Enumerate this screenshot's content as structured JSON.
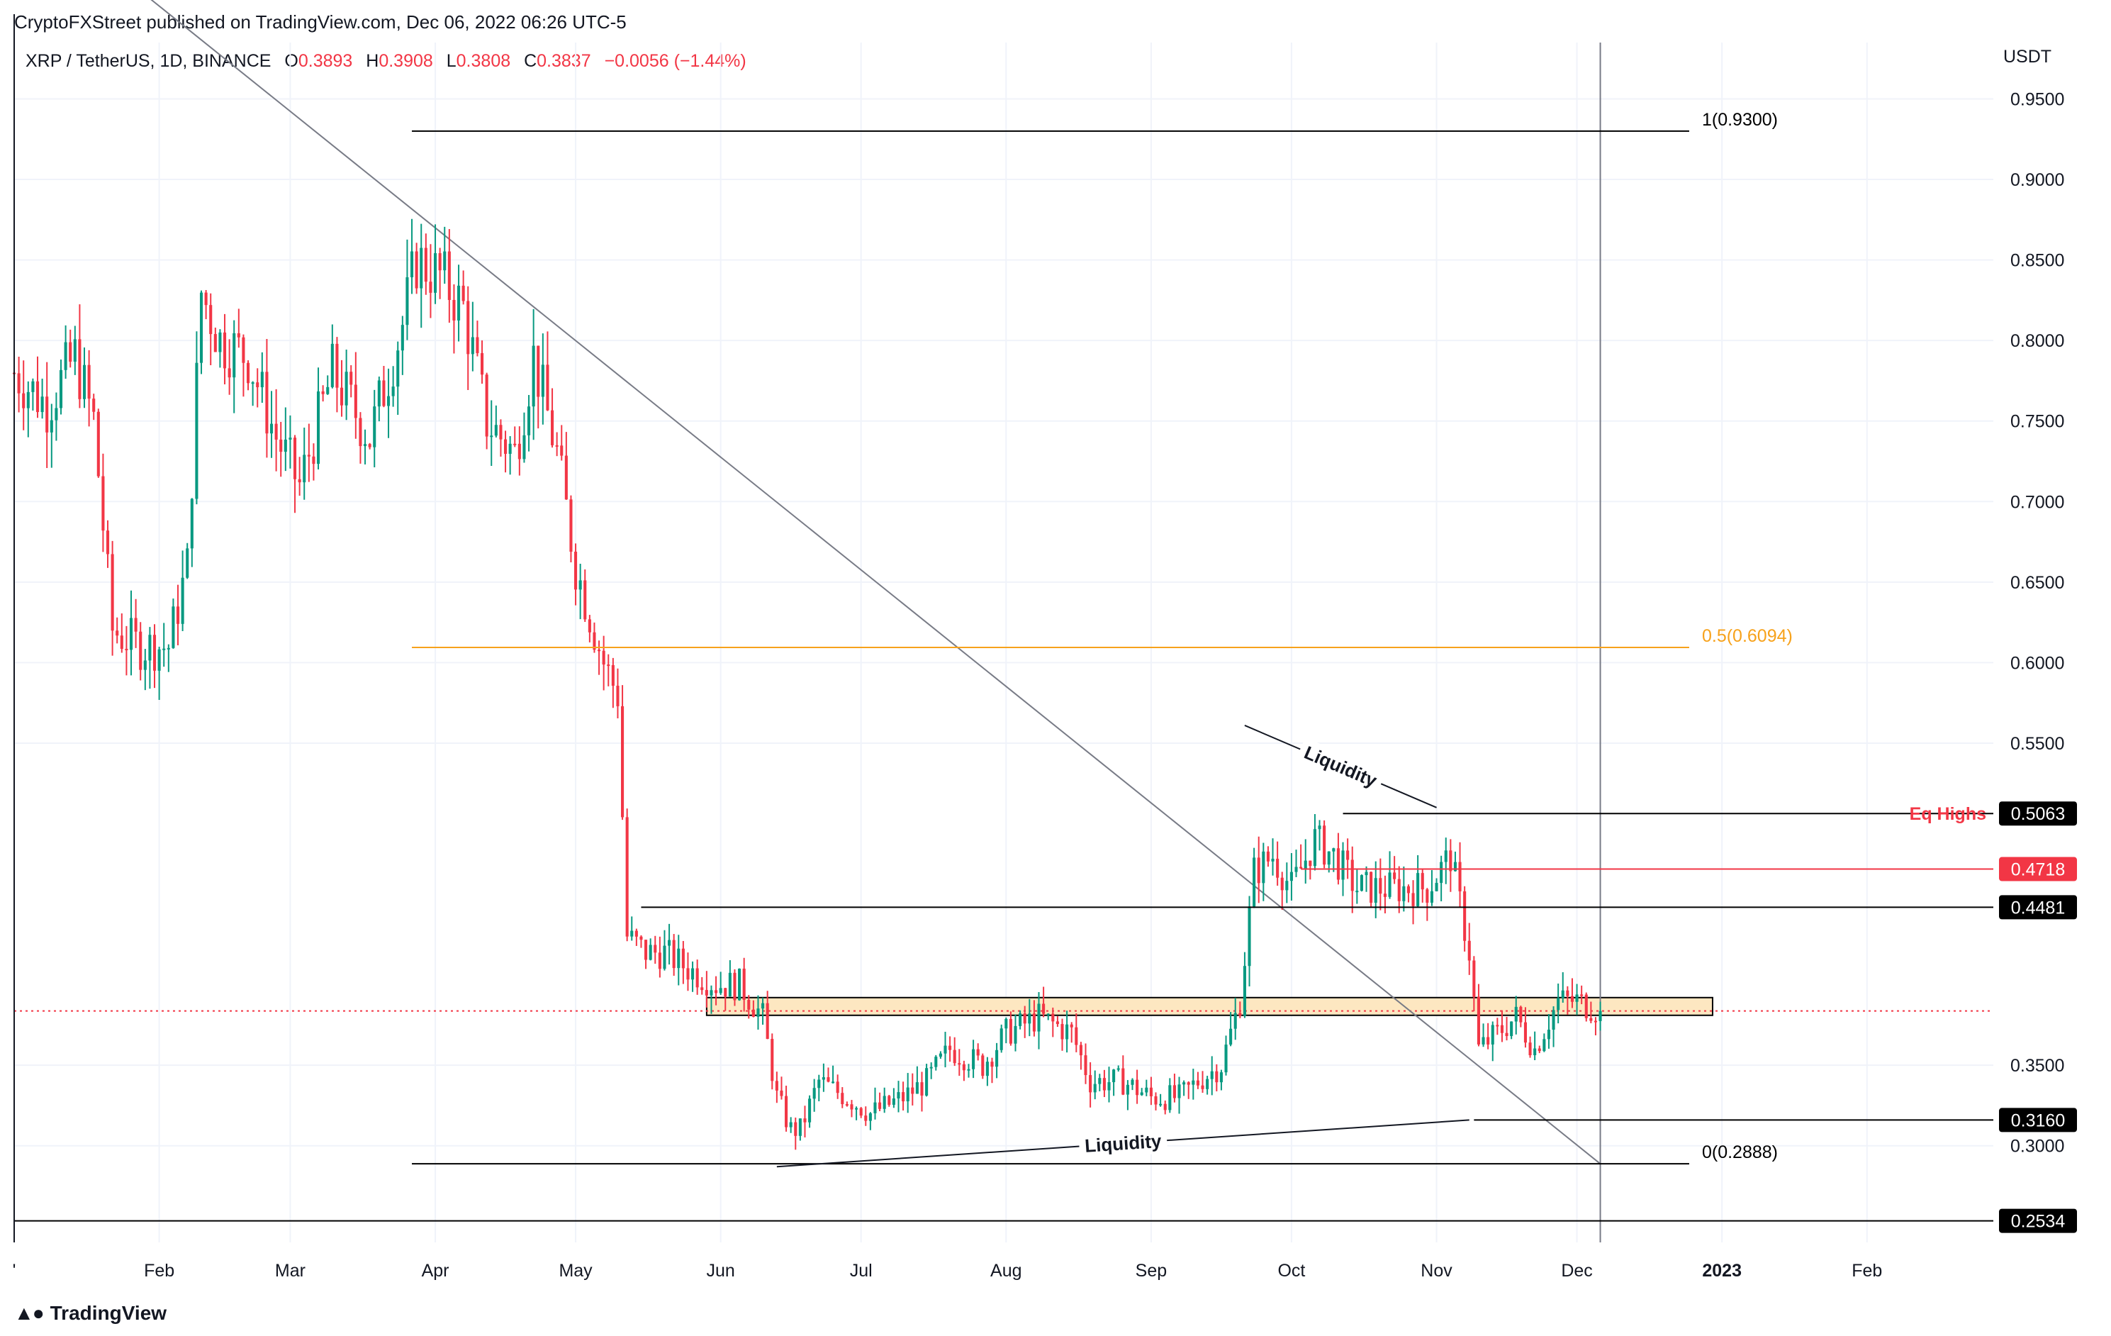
{
  "header": {
    "publisher": "CryptoFXStreet published on TradingView.com, Dec 06, 2022 06:26 UTC-5",
    "symbol": "XRP / TetherUS, 1D, BINANCE",
    "open_label": "O",
    "open": "0.3893",
    "high_label": "H",
    "high": "0.3908",
    "low_label": "L",
    "low": "0.3808",
    "close_label": "C",
    "close": "0.3837",
    "change": "−0.0056 (−1.44%)"
  },
  "footer": {
    "brand": "TradingView",
    "logo_icon": "tradingview-logo-icon"
  },
  "colors": {
    "up": "#089981",
    "down": "#f23645",
    "fib_mid": "#f7a21b",
    "zone_fill": "#fde7c1",
    "zone_stroke": "#000000",
    "price_line": "#f23645",
    "grid": "#f0f3fa"
  },
  "chart_data": {
    "type": "candlestick",
    "ylabel": "USDT",
    "ylim": [
      0.24,
      0.985
    ],
    "xlim": [
      "2022-01-01",
      "2023-02-28"
    ],
    "yticks": [
      "0.9500",
      "0.9000",
      "0.8500",
      "0.8000",
      "0.7500",
      "0.7000",
      "0.6500",
      "0.6000",
      "0.5500",
      "0.3500",
      "0.3000"
    ],
    "xticks": [
      {
        "date": "2022-01-01",
        "label": "'"
      },
      {
        "date": "2022-02-01",
        "label": "Feb"
      },
      {
        "date": "2022-03-01",
        "label": "Mar"
      },
      {
        "date": "2022-04-01",
        "label": "Apr"
      },
      {
        "date": "2022-05-01",
        "label": "May"
      },
      {
        "date": "2022-06-01",
        "label": "Jun"
      },
      {
        "date": "2022-07-01",
        "label": "Jul"
      },
      {
        "date": "2022-08-01",
        "label": "Aug"
      },
      {
        "date": "2022-09-01",
        "label": "Sep"
      },
      {
        "date": "2022-10-01",
        "label": "Oct"
      },
      {
        "date": "2022-11-01",
        "label": "Nov"
      },
      {
        "date": "2022-12-01",
        "label": "Dec"
      },
      {
        "date": "2023-01-01",
        "label": "2023",
        "bold": true
      },
      {
        "date": "2023-02-01",
        "label": "Feb"
      }
    ],
    "price_path": [
      [
        "2022-01-01",
        0.78
      ],
      [
        "2022-01-08",
        0.76
      ],
      [
        "2022-01-14",
        0.79
      ],
      [
        "2022-01-18",
        0.75
      ],
      [
        "2022-01-22",
        0.62
      ],
      [
        "2022-01-28",
        0.61
      ],
      [
        "2022-02-03",
        0.61
      ],
      [
        "2022-02-07",
        0.66
      ],
      [
        "2022-02-10",
        0.83
      ],
      [
        "2022-02-14",
        0.8
      ],
      [
        "2022-02-20",
        0.79
      ],
      [
        "2022-02-26",
        0.74
      ],
      [
        "2022-03-03",
        0.71
      ],
      [
        "2022-03-10",
        0.78
      ],
      [
        "2022-03-18",
        0.74
      ],
      [
        "2022-03-25",
        0.81
      ],
      [
        "2022-03-28",
        0.85
      ],
      [
        "2022-04-02",
        0.84
      ],
      [
        "2022-04-07",
        0.82
      ],
      [
        "2022-04-12",
        0.75
      ],
      [
        "2022-04-18",
        0.73
      ],
      [
        "2022-04-22",
        0.79
      ],
      [
        "2022-04-27",
        0.73
      ],
      [
        "2022-05-01",
        0.66
      ],
      [
        "2022-05-07",
        0.6
      ],
      [
        "2022-05-10",
        0.58
      ],
      [
        "2022-05-12",
        0.43
      ],
      [
        "2022-05-16",
        0.42
      ],
      [
        "2022-05-20",
        0.42
      ],
      [
        "2022-05-25",
        0.41
      ],
      [
        "2022-05-31",
        0.4
      ],
      [
        "2022-06-05",
        0.4
      ],
      [
        "2022-06-10",
        0.38
      ],
      [
        "2022-06-13",
        0.33
      ],
      [
        "2022-06-16",
        0.31
      ],
      [
        "2022-06-18",
        0.31
      ],
      [
        "2022-06-22",
        0.34
      ],
      [
        "2022-06-28",
        0.33
      ],
      [
        "2022-07-03",
        0.32
      ],
      [
        "2022-07-10",
        0.33
      ],
      [
        "2022-07-15",
        0.34
      ],
      [
        "2022-07-20",
        0.36
      ],
      [
        "2022-07-27",
        0.35
      ],
      [
        "2022-08-01",
        0.37
      ],
      [
        "2022-08-08",
        0.38
      ],
      [
        "2022-08-15",
        0.37
      ],
      [
        "2022-08-19",
        0.34
      ],
      [
        "2022-08-26",
        0.34
      ],
      [
        "2022-09-01",
        0.33
      ],
      [
        "2022-09-07",
        0.33
      ],
      [
        "2022-09-11",
        0.34
      ],
      [
        "2022-09-16",
        0.35
      ],
      [
        "2022-09-20",
        0.39
      ],
      [
        "2022-09-23",
        0.47
      ],
      [
        "2022-09-27",
        0.48
      ],
      [
        "2022-10-01",
        0.46
      ],
      [
        "2022-10-06",
        0.49
      ],
      [
        "2022-10-10",
        0.48
      ],
      [
        "2022-10-15",
        0.46
      ],
      [
        "2022-10-20",
        0.46
      ],
      [
        "2022-10-25",
        0.46
      ],
      [
        "2022-10-30",
        0.46
      ],
      [
        "2022-11-04",
        0.48
      ],
      [
        "2022-11-08",
        0.42
      ],
      [
        "2022-11-10",
        0.36
      ],
      [
        "2022-11-14",
        0.37
      ],
      [
        "2022-11-18",
        0.38
      ],
      [
        "2022-11-22",
        0.36
      ],
      [
        "2022-11-27",
        0.39
      ],
      [
        "2022-12-01",
        0.39
      ],
      [
        "2022-12-06",
        0.3837
      ]
    ],
    "levels": [
      {
        "name": "fib-1",
        "value": 0.93,
        "label": "1(0.9300)",
        "from": "2022-03-27",
        "to": "2022-12-25",
        "color": "#000000"
      },
      {
        "name": "fib-0.5",
        "value": 0.6094,
        "label": "0.5(0.6094)",
        "from": "2022-03-27",
        "to": "2022-12-25",
        "color": "#f7a21b"
      },
      {
        "name": "fib-0",
        "value": 0.2888,
        "label": "0(0.2888)",
        "from": "2022-03-27",
        "to": "2022-12-25",
        "color": "#000000"
      },
      {
        "name": "eq-highs",
        "value": 0.5063,
        "tag": "0.5063",
        "note": "Eq Highs",
        "from": "2022-10-12",
        "color": "#000000",
        "tag_bg": "#000000"
      },
      {
        "name": "resistance-red",
        "value": 0.4718,
        "tag": "0.4718",
        "from": "2022-10-03",
        "color": "#f23645",
        "tag_bg": "#f23645"
      },
      {
        "name": "range-high",
        "value": 0.4481,
        "tag": "0.4481",
        "from": "2022-05-15",
        "color": "#000000",
        "tag_bg": "#000000"
      },
      {
        "name": "range-low",
        "value": 0.316,
        "tag": "0.3160",
        "from": "2022-11-09",
        "color": "#000000",
        "tag_bg": "#000000"
      },
      {
        "name": "deep-support",
        "value": 0.2534,
        "tag": "0.2534",
        "from": "2022-01-01",
        "color": "#000000",
        "tag_bg": "#000000"
      }
    ],
    "zone": {
      "from": "2022-05-29",
      "to": "2022-12-30",
      "low": 0.381,
      "high": 0.392
    },
    "current_price": 0.3837,
    "trendline": {
      "from": [
        "2022-01-01",
        1.08
      ],
      "to": [
        "2022-12-06",
        0.2888
      ]
    },
    "vertical_marker": "2022-12-06",
    "annotations": [
      {
        "text": "Liquidity",
        "line": [
          [
            "2022-09-21",
            0.561
          ],
          [
            "2022-11-01",
            0.51
          ]
        ]
      },
      {
        "text": "Liquidity",
        "line": [
          [
            "2022-06-13",
            0.287
          ],
          [
            "2022-11-08",
            0.316
          ]
        ]
      }
    ]
  }
}
